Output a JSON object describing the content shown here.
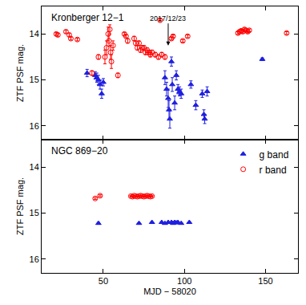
{
  "chart_data": [
    {
      "type": "scatter",
      "title": "Kronberger 12−1",
      "y_label": "ZTF PSF mag.",
      "xlim": [
        12,
        170
      ],
      "xticks": [
        50,
        100,
        150
      ],
      "ylim": [
        16.3,
        13.4
      ],
      "yticks": [
        14,
        15,
        16
      ],
      "tick_labels": "y",
      "annotations": [
        {
          "text": "2017/12/23",
          "x": 90,
          "y": 14.25
        }
      ],
      "series": [
        {
          "name": "g band",
          "color": "#1f1fe0",
          "marker": "triangle-up",
          "x": [
            40,
            45,
            46,
            47,
            48,
            49,
            50,
            88,
            89,
            90,
            90.5,
            91,
            92,
            92.5,
            94,
            95,
            96,
            97,
            98,
            104,
            107,
            111,
            112,
            112.5,
            114,
            148
          ],
          "values": [
            14.85,
            14.9,
            14.95,
            15.0,
            15.1,
            15.3,
            15.05,
            14.95,
            15.2,
            15.4,
            15.65,
            15.85,
            14.6,
            15.1,
            15.5,
            14.9,
            15.2,
            15.25,
            15.3,
            15.1,
            15.55,
            15.3,
            15.75,
            15.85,
            15.25,
            14.55
          ],
          "error": [
            0.08,
            0.08,
            0.1,
            0.1,
            0.1,
            0.1,
            0.08,
            0.15,
            0.15,
            0.2,
            0.2,
            0.2,
            0.1,
            0.15,
            0.15,
            0.1,
            0.1,
            0.1,
            0.1,
            0.08,
            0.1,
            0.08,
            0.1,
            0.1,
            0.1,
            0.03
          ]
        },
        {
          "name": "r band",
          "color": "#ff0000",
          "marker": "circle-open",
          "x": [
            21,
            22,
            27,
            29,
            30,
            34,
            43,
            47,
            51,
            52,
            53,
            53.5,
            54,
            54.5,
            55,
            56,
            59,
            63,
            64,
            65,
            69,
            70,
            71,
            72,
            73,
            74,
            75,
            76,
            77,
            78,
            79,
            80,
            82,
            84,
            85,
            86,
            88,
            92,
            93,
            99,
            102,
            133,
            134,
            135,
            136,
            137,
            138,
            139,
            140,
            163
          ],
          "values": [
            14.0,
            14.02,
            13.95,
            14.02,
            14.1,
            14.12,
            14.85,
            14.5,
            14.5,
            14.3,
            14.0,
            14.15,
            13.9,
            14.4,
            14.6,
            14.25,
            14.9,
            14.0,
            14.05,
            14.15,
            14.1,
            14.2,
            14.3,
            14.2,
            14.35,
            14.3,
            14.3,
            14.4,
            14.35,
            14.4,
            14.45,
            14.4,
            14.45,
            14.5,
            13.7,
            14.45,
            14.5,
            14.1,
            14.05,
            14.15,
            14.05,
            13.98,
            13.95,
            13.93,
            13.95,
            13.9,
            13.92,
            13.95,
            13.92,
            13.98
          ],
          "error": [
            0.03,
            0.03,
            0.03,
            0.03,
            0.03,
            0.03,
            0.05,
            0.05,
            0.15,
            0.15,
            0.15,
            0.12,
            0.1,
            0.15,
            0.15,
            0.1,
            0.05,
            0.03,
            0.03,
            0.05,
            0.05,
            0.05,
            0.05,
            0.05,
            0.05,
            0.05,
            0.05,
            0.05,
            0.05,
            0.05,
            0.05,
            0.05,
            0.05,
            0.05,
            0.03,
            0.05,
            0.05,
            0.03,
            0.03,
            0.03,
            0.03,
            0.03,
            0.03,
            0.03,
            0.03,
            0.03,
            0.03,
            0.03,
            0.03,
            0.03
          ]
        }
      ]
    },
    {
      "type": "scatter",
      "title": "NGC 869−20",
      "x_label": "MJD − 58020",
      "y_label": "ZTF PSF mag.",
      "xlim": [
        12,
        170
      ],
      "xticks": [
        50,
        100,
        150
      ],
      "ylim": [
        16.3,
        13.4
      ],
      "yticks": [
        14,
        15,
        16
      ],
      "legend": "upper right",
      "series": [
        {
          "name": "g band",
          "color": "#1f1fe0",
          "marker": "triangle-up",
          "x": [
            47,
            72,
            80,
            86,
            88,
            90,
            92,
            93,
            94,
            95,
            96,
            98,
            103
          ],
          "values": [
            15.22,
            15.22,
            15.2,
            15.2,
            15.22,
            15.2,
            15.2,
            15.22,
            15.2,
            15.21,
            15.2,
            15.22,
            15.2
          ],
          "error": [
            0.02,
            0.01,
            0.01,
            0.01,
            0.01,
            0.01,
            0.01,
            0.01,
            0.01,
            0.01,
            0.01,
            0.01,
            0.01
          ]
        },
        {
          "name": "r band",
          "color": "#ff0000",
          "marker": "circle-open",
          "x": [
            45,
            48,
            67,
            68,
            69,
            70,
            71,
            72,
            73,
            74,
            75,
            76,
            77,
            78,
            79,
            80
          ],
          "values": [
            14.68,
            14.62,
            14.63,
            14.64,
            14.62,
            14.63,
            14.64,
            14.63,
            14.62,
            14.63,
            14.64,
            14.63,
            14.62,
            14.63,
            14.64,
            14.63
          ],
          "error": [
            0.02,
            0.02,
            0.01,
            0.01,
            0.01,
            0.01,
            0.01,
            0.01,
            0.01,
            0.01,
            0.01,
            0.01,
            0.01,
            0.01,
            0.01,
            0.01
          ]
        }
      ]
    }
  ]
}
